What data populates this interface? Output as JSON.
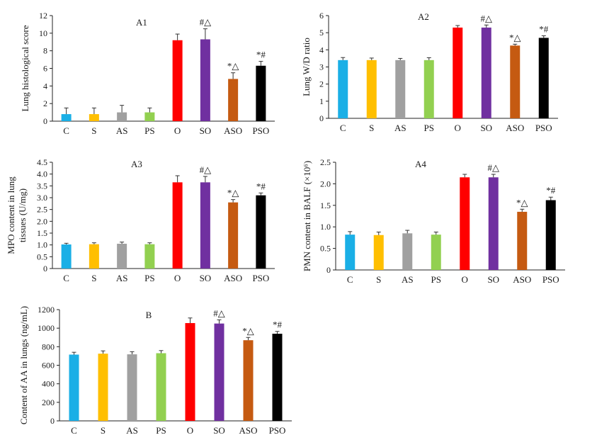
{
  "colors": {
    "C": "#1aafe6",
    "S": "#ffbf00",
    "AS": "#a0a0a0",
    "PS": "#92d050",
    "O": "#ff0000",
    "SO": "#7030a0",
    "ASO": "#c55a11",
    "PSO": "#000000",
    "axis": "#222222"
  },
  "chart_data": [
    {
      "id": "A1",
      "type": "bar",
      "title": "A1",
      "ylabel": "Lung histological score",
      "categories": [
        "C",
        "S",
        "AS",
        "PS",
        "O",
        "SO",
        "ASO",
        "PSO"
      ],
      "values": [
        0.8,
        0.8,
        1.0,
        1.0,
        9.2,
        9.3,
        4.8,
        6.3
      ],
      "errors": [
        0.7,
        0.7,
        0.8,
        0.5,
        0.7,
        1.2,
        0.7,
        0.5
      ],
      "yticks": [
        "0",
        "2",
        "4",
        "6",
        "8",
        "10",
        "12"
      ],
      "ylim": [
        0,
        12
      ],
      "annotations": [
        "",
        "",
        "",
        "",
        "",
        "#△",
        "*△",
        "*#"
      ]
    },
    {
      "id": "A2",
      "type": "bar",
      "title": "A2",
      "ylabel": "Lung W/D ratio",
      "categories": [
        "C",
        "S",
        "AS",
        "PS",
        "O",
        "SO",
        "ASO",
        "PSO"
      ],
      "values": [
        3.4,
        3.4,
        3.4,
        3.4,
        5.3,
        5.3,
        4.25,
        4.7
      ],
      "errors": [
        0.15,
        0.12,
        0.1,
        0.14,
        0.12,
        0.15,
        0.08,
        0.12
      ],
      "yticks": [
        "0",
        "1",
        "2",
        "3",
        "4",
        "5",
        "6"
      ],
      "ylim": [
        0,
        6
      ],
      "annotations": [
        "",
        "",
        "",
        "",
        "",
        "#△",
        "*△",
        "*#"
      ]
    },
    {
      "id": "A3",
      "type": "bar",
      "title": "A3",
      "ylabel": "MPO content in lung tissues (U/mg)",
      "ylabel_lines": [
        "MPO content in lung",
        "tissues (U/mg)"
      ],
      "categories": [
        "C",
        "S",
        "AS",
        "PS",
        "O",
        "SO",
        "ASO",
        "PSO"
      ],
      "values": [
        1.02,
        1.03,
        1.05,
        1.03,
        3.65,
        3.65,
        2.8,
        3.1
      ],
      "errors": [
        0.05,
        0.06,
        0.07,
        0.06,
        0.28,
        0.25,
        0.12,
        0.1
      ],
      "yticks": [
        "0",
        "0.5",
        "1.0",
        "1.5",
        "2.0",
        "2.5",
        "3.0",
        "3.5",
        "4.0",
        "4.5"
      ],
      "ylim": [
        0,
        4.5
      ],
      "annotations": [
        "",
        "",
        "",
        "",
        "",
        "#△",
        "*△",
        "*#"
      ]
    },
    {
      "id": "A4",
      "type": "bar",
      "title": "A4",
      "ylabel": "PMN content in BALF (×10⁶)",
      "categories": [
        "C",
        "S",
        "AS",
        "PS",
        "O",
        "SO",
        "ASO",
        "PSO"
      ],
      "values": [
        0.82,
        0.81,
        0.85,
        0.82,
        2.15,
        2.15,
        1.35,
        1.62
      ],
      "errors": [
        0.07,
        0.07,
        0.07,
        0.06,
        0.07,
        0.07,
        0.06,
        0.07
      ],
      "yticks": [
        "0",
        "0.5",
        "1.0",
        "1.5",
        "2.0",
        "2.5"
      ],
      "ylim": [
        0,
        2.5
      ],
      "annotations": [
        "",
        "",
        "",
        "",
        "",
        "#△",
        "*△",
        "*#"
      ]
    },
    {
      "id": "B",
      "type": "bar",
      "title": "B",
      "ylabel": "Content of AA in lungs (ng/mL)",
      "categories": [
        "C",
        "S",
        "AS",
        "PS",
        "O",
        "SO",
        "ASO",
        "PSO"
      ],
      "values": [
        715,
        725,
        718,
        730,
        1055,
        1050,
        870,
        940
      ],
      "errors": [
        25,
        30,
        28,
        28,
        55,
        40,
        30,
        25
      ],
      "yticks": [
        "0",
        "200",
        "400",
        "600",
        "800",
        "1000",
        "1200"
      ],
      "ylim": [
        0,
        1200
      ],
      "annotations": [
        "",
        "",
        "",
        "",
        "",
        "#△",
        "*△",
        "*#"
      ]
    }
  ]
}
